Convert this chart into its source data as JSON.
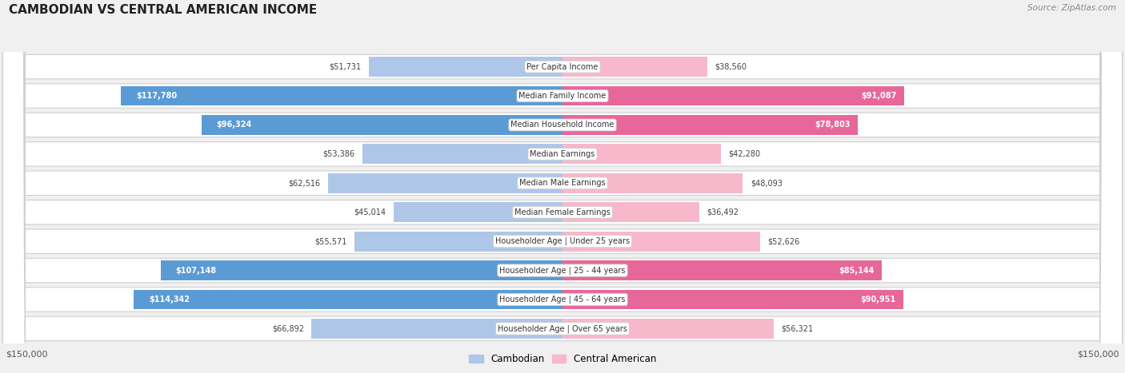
{
  "title": "CAMBODIAN VS CENTRAL AMERICAN INCOME",
  "source": "Source: ZipAtlas.com",
  "categories": [
    "Per Capita Income",
    "Median Family Income",
    "Median Household Income",
    "Median Earnings",
    "Median Male Earnings",
    "Median Female Earnings",
    "Householder Age | Under 25 years",
    "Householder Age | 25 - 44 years",
    "Householder Age | 45 - 64 years",
    "Householder Age | Over 65 years"
  ],
  "cambodian_values": [
    51731,
    117780,
    96324,
    53386,
    62516,
    45014,
    55571,
    107148,
    114342,
    66892
  ],
  "central_american_values": [
    38560,
    91087,
    78803,
    42280,
    48093,
    36492,
    52626,
    85144,
    90951,
    56321
  ],
  "cambodian_labels": [
    "$51,731",
    "$117,780",
    "$96,324",
    "$53,386",
    "$62,516",
    "$45,014",
    "$55,571",
    "$107,148",
    "$114,342",
    "$66,892"
  ],
  "central_american_labels": [
    "$38,560",
    "$91,087",
    "$78,803",
    "$42,280",
    "$48,093",
    "$36,492",
    "$52,626",
    "$85,144",
    "$90,951",
    "$56,321"
  ],
  "cambodian_color_light": "#aec6e8",
  "cambodian_color_dark": "#5b9bd5",
  "central_american_color_light": "#f7b8cc",
  "central_american_color_dark": "#e8679a",
  "cam_inside_threshold": 75000,
  "ca_inside_threshold": 75000,
  "max_value": 150000,
  "x_tick_label_left": "$150,000",
  "x_tick_label_right": "$150,000",
  "background_color": "#f0f0f0",
  "row_bg_color": "#ffffff",
  "row_border_color": "#d0d0d0",
  "legend_cambodian": "Cambodian",
  "legend_central_american": "Central American"
}
